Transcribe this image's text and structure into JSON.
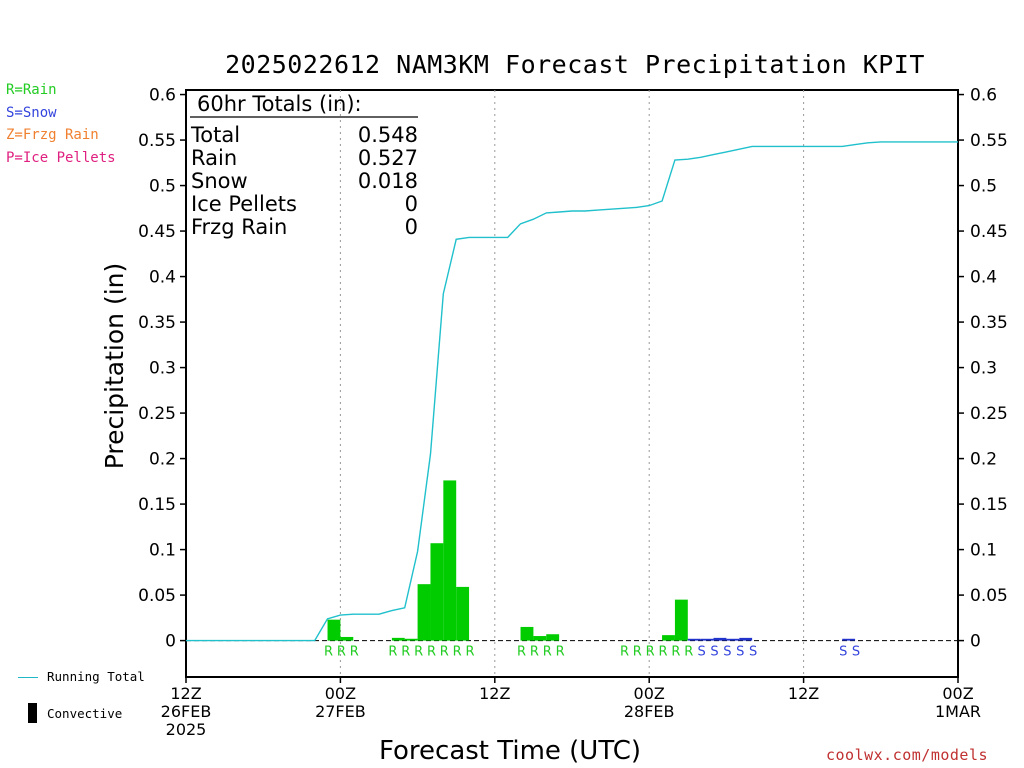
{
  "title": "2025022612 NAM3KM Forecast Precipitation KPIT",
  "type_legend": [
    {
      "label": "R=Rain",
      "color": "#22cc22"
    },
    {
      "label": "S=Snow",
      "color": "#3344dd"
    },
    {
      "label": "Z=Frzg Rain",
      "color": "#f08030"
    },
    {
      "label": "P=Ice Pellets",
      "color": "#e02080"
    }
  ],
  "bottom_legend": {
    "line_label": "Running Total",
    "bar_label": "Convective"
  },
  "credit": "coolwx.com/models",
  "totals": {
    "header": "60hr Totals (in):",
    "rows": [
      {
        "label": "Total",
        "value": "0.548"
      },
      {
        "label": "Rain",
        "value": "0.527"
      },
      {
        "label": "Snow",
        "value": "0.018"
      },
      {
        "label": "Ice Pellets",
        "value": "0"
      },
      {
        "label": "Frzg Rain",
        "value": "0"
      }
    ]
  },
  "chart_data": {
    "type": "bar",
    "title": "2025022612 NAM3KM Forecast Precipitation KPIT",
    "xlabel": "Forecast Time (UTC)",
    "ylabel": "Precipitation (in)",
    "xlim": [
      0,
      60
    ],
    "ylim": [
      -0.04,
      0.605
    ],
    "y_ticks": [
      0,
      0.05,
      0.1,
      0.15,
      0.2,
      0.25,
      0.3,
      0.35,
      0.4,
      0.45,
      0.5,
      0.55,
      0.6
    ],
    "y_tick_labels": [
      "0",
      "0.05",
      "0.1",
      "0.15",
      "0.2",
      "0.25",
      "0.3",
      "0.35",
      "0.4",
      "0.45",
      "0.5",
      "0.55",
      "0.6"
    ],
    "x_ticks": [
      {
        "hour": 0,
        "lines": [
          "12Z",
          "26FEB",
          "2025"
        ]
      },
      {
        "hour": 12,
        "lines": [
          "00Z",
          "27FEB"
        ]
      },
      {
        "hour": 24,
        "lines": [
          "12Z"
        ]
      },
      {
        "hour": 36,
        "lines": [
          "00Z",
          "28FEB"
        ]
      },
      {
        "hour": 48,
        "lines": [
          "12Z"
        ]
      },
      {
        "hour": 60,
        "lines": [
          "00Z",
          "1MAR"
        ]
      }
    ],
    "gridlines_x": [
      12,
      24,
      36,
      48
    ],
    "bar_series": [
      {
        "name": "Rain",
        "color": "#00cc00",
        "hours": [
          11,
          12,
          16,
          17,
          18,
          19,
          20,
          21,
          26,
          27,
          28,
          37,
          38
        ],
        "values": [
          0.023,
          0.004,
          0.003,
          0.002,
          0.062,
          0.107,
          0.176,
          0.059,
          0.015,
          0.005,
          0.007,
          0.006,
          0.045
        ]
      },
      {
        "name": "Snow",
        "color": "#2233cc",
        "hours": [
          39,
          40,
          41,
          42,
          43,
          51
        ],
        "values": [
          0.002,
          0.002,
          0.003,
          0.002,
          0.003,
          0.002
        ]
      }
    ],
    "running_total": {
      "name": "Running Total",
      "color": "#20c0cc",
      "x": [
        0,
        10,
        11,
        12,
        13,
        14,
        15,
        16,
        17,
        18,
        19,
        20,
        21,
        22,
        23,
        24,
        25,
        26,
        27,
        28,
        29,
        30,
        31,
        32,
        33,
        34,
        35,
        36,
        37,
        38,
        39,
        40,
        41,
        42,
        43,
        44,
        45,
        46,
        47,
        48,
        49,
        50,
        51,
        52,
        53,
        54,
        55,
        56,
        57,
        58,
        59,
        60
      ],
      "y": [
        0,
        0,
        0.024,
        0.028,
        0.029,
        0.029,
        0.029,
        0.033,
        0.036,
        0.098,
        0.205,
        0.381,
        0.441,
        0.443,
        0.443,
        0.443,
        0.443,
        0.458,
        0.463,
        0.47,
        0.471,
        0.472,
        0.472,
        0.473,
        0.474,
        0.475,
        0.476,
        0.478,
        0.483,
        0.528,
        0.529,
        0.531,
        0.534,
        0.537,
        0.54,
        0.543,
        0.543,
        0.543,
        0.543,
        0.543,
        0.543,
        0.543,
        0.543,
        0.545,
        0.547,
        0.548,
        0.548,
        0.548,
        0.548,
        0.548,
        0.548,
        0.548
      ]
    },
    "type_marks": [
      {
        "hour": 11,
        "text": "R",
        "kind": "rain"
      },
      {
        "hour": 12,
        "text": "R",
        "kind": "rain"
      },
      {
        "hour": 13,
        "text": "R",
        "kind": "rain"
      },
      {
        "hour": 16,
        "text": "R",
        "kind": "rain"
      },
      {
        "hour": 17,
        "text": "R",
        "kind": "rain"
      },
      {
        "hour": 18,
        "text": "R",
        "kind": "rain"
      },
      {
        "hour": 19,
        "text": "R",
        "kind": "rain"
      },
      {
        "hour": 20,
        "text": "R",
        "kind": "rain"
      },
      {
        "hour": 21,
        "text": "R",
        "kind": "rain"
      },
      {
        "hour": 22,
        "text": "R",
        "kind": "rain"
      },
      {
        "hour": 26,
        "text": "R",
        "kind": "rain"
      },
      {
        "hour": 27,
        "text": "R",
        "kind": "rain"
      },
      {
        "hour": 28,
        "text": "R",
        "kind": "rain"
      },
      {
        "hour": 29,
        "text": "R",
        "kind": "rain"
      },
      {
        "hour": 34,
        "text": "R",
        "kind": "rain"
      },
      {
        "hour": 35,
        "text": "R",
        "kind": "rain"
      },
      {
        "hour": 36,
        "text": "R",
        "kind": "rain"
      },
      {
        "hour": 37,
        "text": "R",
        "kind": "rain"
      },
      {
        "hour": 38,
        "text": "R",
        "kind": "rain"
      },
      {
        "hour": 39,
        "text": "R",
        "kind": "rain"
      },
      {
        "hour": 40,
        "text": "S",
        "kind": "snow"
      },
      {
        "hour": 41,
        "text": "S",
        "kind": "snow"
      },
      {
        "hour": 42,
        "text": "S",
        "kind": "snow"
      },
      {
        "hour": 43,
        "text": "S",
        "kind": "snow"
      },
      {
        "hour": 44,
        "text": "S",
        "kind": "snow"
      },
      {
        "hour": 51,
        "text": "S",
        "kind": "snow"
      },
      {
        "hour": 52,
        "text": "S",
        "kind": "snow"
      }
    ]
  }
}
